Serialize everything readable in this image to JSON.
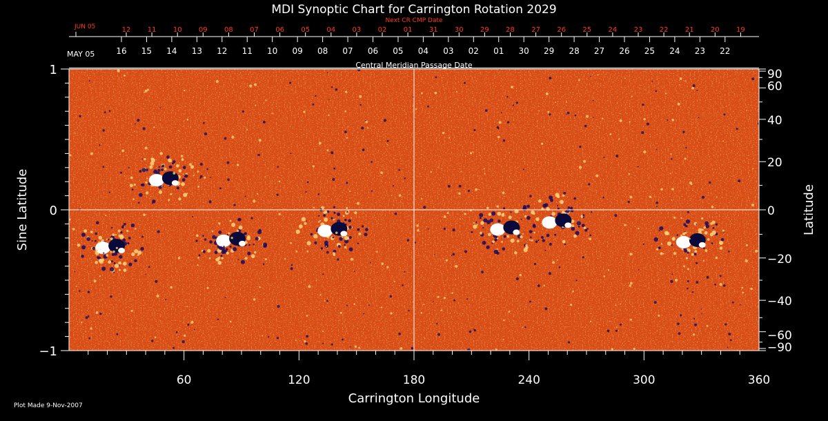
{
  "chart_data": {
    "type": "heatmap",
    "title": "MDI Synoptic Chart for Carrington Rotation 2029",
    "xlabel": "Carrington Longitude",
    "ylabel_left": "Sine Latitude",
    "ylabel_right": "Latitude",
    "xlim": [
      0,
      360
    ],
    "ylim": [
      -1,
      1
    ],
    "x_ticks": [
      "60",
      "120",
      "180",
      "240",
      "300",
      "360"
    ],
    "x_tick_values": [
      60,
      120,
      180,
      240,
      300,
      360
    ],
    "y_left_ticks": [
      "1",
      "0",
      "−1"
    ],
    "y_left_tick_values": [
      1,
      0,
      -1
    ],
    "y_right_ticks": [
      "90",
      "60",
      "40",
      "20",
      "0",
      "−20",
      "−40",
      "−60",
      "−90"
    ],
    "y_right_tick_values": [
      90,
      60,
      40,
      20,
      0,
      -20,
      -40,
      -60,
      -90
    ],
    "top_axis_red": {
      "title": "Next CR CMP Date",
      "month_label": "JUN 05",
      "labels": [
        "12",
        "11",
        "10",
        "09",
        "08",
        "07",
        "06",
        "05",
        "04",
        "03",
        "02",
        "01",
        "31",
        "30",
        "29",
        "28",
        "27",
        "26",
        "25",
        "24",
        "23",
        "22",
        "21",
        "20",
        "19"
      ]
    },
    "top_axis_white": {
      "title": "Central Meridian Passage Date",
      "month_label": "MAY 05",
      "labels": [
        "16",
        "15",
        "14",
        "13",
        "12",
        "11",
        "10",
        "09",
        "08",
        "07",
        "06",
        "05",
        "04",
        "03",
        "02",
        "01",
        "30",
        "29",
        "28",
        "27",
        "26",
        "25",
        "24",
        "23",
        "22"
      ]
    },
    "crosshair": {
      "x": 180,
      "y": 0
    },
    "colors": {
      "background": "#000000",
      "field_base": "#e04a12",
      "field_dark": "#8a1204",
      "field_light": "#ffb040",
      "positive_polarity": "#ffffff",
      "negative_polarity": "#0a0a4a",
      "top_date_color": "#ff3a1a"
    },
    "active_regions": [
      {
        "lon": 50,
        "sinlat": 0.22,
        "polarity": "bipolar"
      },
      {
        "lon": 22,
        "sinlat": -0.26,
        "polarity": "bipolar"
      },
      {
        "lon": 85,
        "sinlat": -0.21,
        "polarity": "bipolar"
      },
      {
        "lon": 138,
        "sinlat": -0.14,
        "polarity": "bipolar"
      },
      {
        "lon": 228,
        "sinlat": -0.13,
        "polarity": "bipolar"
      },
      {
        "lon": 255,
        "sinlat": -0.08,
        "polarity": "bipolar"
      },
      {
        "lon": 325,
        "sinlat": -0.22,
        "polarity": "bipolar"
      }
    ]
  },
  "footer": {
    "plot_made": "Plot Made  9-Nov-2007"
  }
}
